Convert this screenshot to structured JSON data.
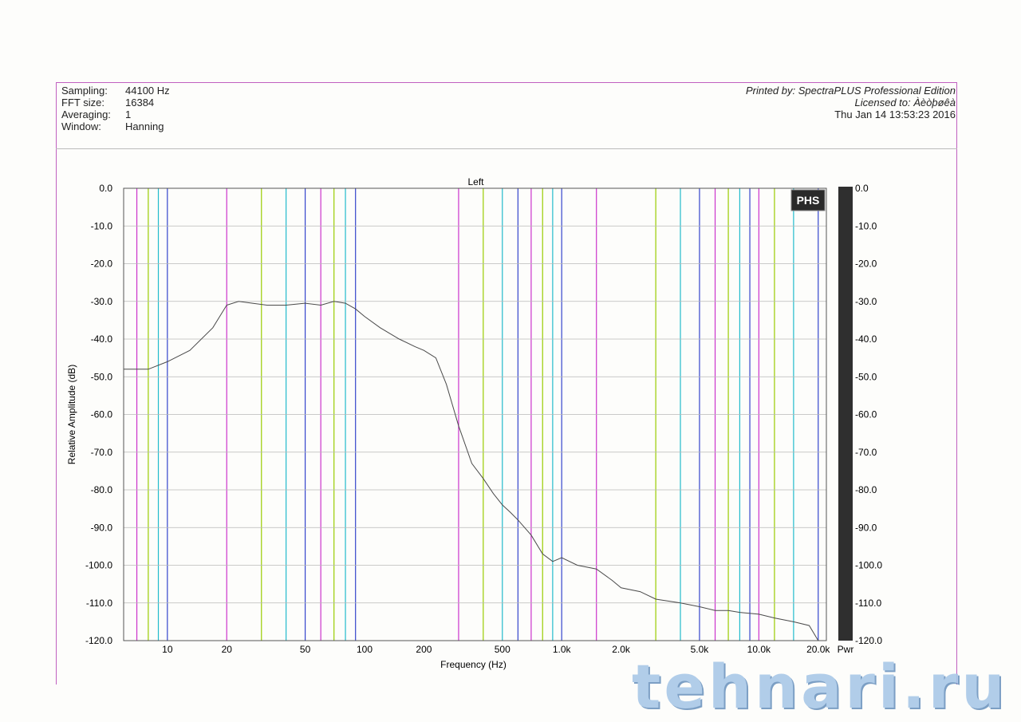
{
  "header": {
    "rows": [
      {
        "label": "Sampling:",
        "value": "44100 Hz"
      },
      {
        "label": "FFT size:",
        "value": "16384"
      },
      {
        "label": "Averaging:",
        "value": "1"
      },
      {
        "label": "Window:",
        "value": "Hanning"
      }
    ],
    "printed_by": "Printed by: SpectraPLUS Professional Edition",
    "licensed_to": "Licensed to: Àèòþøêà",
    "date": "Thu Jan 14 13:53:23 2016"
  },
  "logo": "PHS",
  "meter_label": "Pwr",
  "watermark": "tehnari.ru",
  "colors": {
    "trace": "#4a4a4a",
    "markers": [
      "#cc33cc",
      "#99cc00",
      "#22bbcc",
      "#3344cc"
    ],
    "gridline": "#b8b8b8",
    "meter": "#2f2f2f"
  },
  "chart_data": {
    "type": "line",
    "title": "Left",
    "xlabel": "Frequency (Hz)",
    "ylabel": "Relative Amplitude (dB)",
    "x_scale": "log",
    "xlim": [
      6,
      22000
    ],
    "ylim": [
      -120,
      0
    ],
    "x_ticks": [
      10,
      20,
      50,
      100,
      200,
      500,
      1000,
      2000,
      5000,
      10000,
      20000
    ],
    "x_tick_labels": [
      "10",
      "20",
      "50",
      "100",
      "200",
      "500",
      "1.0k",
      "2.0k",
      "5.0k",
      "10.0k",
      "20.0k"
    ],
    "y_ticks": [
      0,
      -10,
      -20,
      -30,
      -40,
      -50,
      -60,
      -70,
      -80,
      -90,
      -100,
      -110,
      -120
    ],
    "y_tick_labels": [
      "0.0",
      "-10.0",
      "-20.0",
      "-30.0",
      "-40.0",
      "-50.0",
      "-60.0",
      "-70.0",
      "-80.0",
      "-90.0",
      "-100.0",
      "-110.0",
      "-120.0"
    ],
    "y2_tick_labels": [
      "0.0",
      "-10.0",
      "-20.0",
      "-30.0",
      "-40.0",
      "-50.0",
      "-60.0",
      "-70.0",
      "-80.0",
      "-90.0",
      "-100.0",
      "-110.0",
      "-120.0"
    ],
    "grid": true,
    "series": [
      {
        "x": [
          6,
          8,
          10,
          13,
          17,
          20,
          23,
          27,
          32,
          40,
          50,
          60,
          70,
          80,
          90,
          100,
          120,
          150,
          180,
          200,
          230,
          260,
          300,
          350,
          400,
          450,
          500,
          550,
          600,
          700,
          800,
          900,
          1000,
          1200,
          1500,
          1800,
          2000,
          2500,
          3000,
          4000,
          5000,
          6000,
          7000,
          8000,
          10000,
          12000,
          15000,
          18000,
          20000
        ],
        "y": [
          -48,
          -48,
          -46,
          -43,
          -37,
          -31,
          -30,
          -30.5,
          -31,
          -31,
          -30.5,
          -31,
          -30,
          -30.5,
          -32,
          -34,
          -37,
          -40,
          -42,
          -43,
          -45,
          -52,
          -63,
          -73,
          -77,
          -81,
          -84,
          -86,
          -88,
          -92,
          -97,
          -99,
          -98,
          -100,
          -101,
          -104,
          -106,
          -107,
          -109,
          -110,
          -111,
          -112,
          -112,
          -112.5,
          -113,
          -114,
          -115,
          -116,
          -120
        ]
      }
    ],
    "markers_hz": [
      7,
      8,
      9,
      10,
      20,
      30,
      40,
      50,
      60,
      70,
      80,
      90,
      300,
      400,
      500,
      600,
      700,
      800,
      900,
      1000,
      1500,
      3000,
      4000,
      5000,
      6000,
      7000,
      8000,
      9000,
      10000,
      12000,
      15000,
      20000
    ]
  }
}
